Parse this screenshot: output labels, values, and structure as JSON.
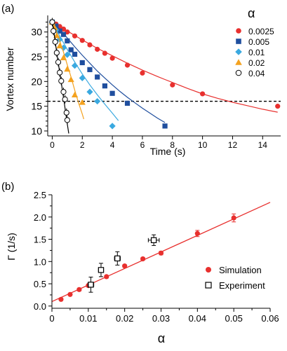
{
  "chart_data": [
    {
      "panel_label": "(a)",
      "type": "scatter",
      "xlabel": "Time (s)",
      "ylabel": "Vortex number",
      "xlim": [
        -0.3,
        15.2
      ],
      "ylim": [
        9,
        32.5
      ],
      "xticks": [
        0,
        2,
        4,
        6,
        8,
        10,
        12,
        14
      ],
      "yticks": [
        10,
        15,
        20,
        25,
        30
      ],
      "xtick_labels": [
        "0",
        "2",
        "4",
        "6",
        "8",
        "10",
        "12",
        "14"
      ],
      "ytick_labels": [
        "10",
        "15",
        "20",
        "25",
        "30"
      ],
      "legend_title": "α",
      "legend_position": "top-right",
      "reference_line": {
        "y": 16,
        "style": "dashed"
      },
      "series": [
        {
          "name": "0.0025",
          "color": "#e8302e",
          "marker": "circle-filled",
          "points": [
            [
              0,
              32
            ],
            [
              0.25,
              31.6
            ],
            [
              0.5,
              31.1
            ],
            [
              0.75,
              30.6
            ],
            [
              1,
              30
            ],
            [
              1.5,
              29.2
            ],
            [
              2,
              28.3
            ],
            [
              2.5,
              27.4
            ],
            [
              3,
              26.5
            ],
            [
              3.5,
              25.7
            ],
            [
              4,
              24.7
            ],
            [
              5,
              23.3
            ],
            [
              6,
              21.7
            ],
            [
              8,
              19.3
            ],
            [
              10,
              17.5
            ],
            [
              15,
              15
            ]
          ],
          "curve": [
            [
              0,
              32
            ],
            [
              1,
              30.2
            ],
            [
              2,
              28.4
            ],
            [
              3,
              26.7
            ],
            [
              4,
              25.2
            ],
            [
              5,
              23.7
            ],
            [
              6,
              22.3
            ],
            [
              7,
              21
            ],
            [
              7.5,
              20.4
            ],
            [
              8,
              19.8
            ],
            [
              9,
              18.6
            ],
            [
              10,
              17.5
            ],
            [
              11,
              16.6
            ],
            [
              12,
              15.8
            ],
            [
              13,
              15.1
            ],
            [
              14,
              14.4
            ],
            [
              15,
              13.8
            ]
          ]
        },
        {
          "name": "0.005",
          "color": "#1f4e9e",
          "marker": "square-filled",
          "points": [
            [
              0,
              32
            ],
            [
              0.25,
              31.2
            ],
            [
              0.5,
              30.2
            ],
            [
              0.75,
              29.5
            ],
            [
              1,
              28.2
            ],
            [
              1.25,
              26.4
            ],
            [
              1.5,
              25.5
            ],
            [
              2,
              23.8
            ],
            [
              2.5,
              22.4
            ],
            [
              3,
              20.9
            ],
            [
              3.5,
              19.1
            ],
            [
              4,
              17.6
            ],
            [
              5,
              15.6
            ],
            [
              7.5,
              11
            ]
          ],
          "curve": [
            [
              0,
              32
            ],
            [
              0.5,
              30.6
            ],
            [
              1,
              28.8
            ],
            [
              1.5,
              27
            ],
            [
              2,
              25.3
            ],
            [
              2.5,
              23.7
            ],
            [
              3,
              22.1
            ],
            [
              3.5,
              20.7
            ],
            [
              4,
              19.3
            ],
            [
              4.5,
              18
            ],
            [
              5,
              16.8
            ],
            [
              5.5,
              15.7
            ],
            [
              6,
              14.6
            ],
            [
              6.5,
              13.6
            ],
            [
              7,
              12.6
            ],
            [
              7.5,
              11.7
            ]
          ]
        },
        {
          "name": "0.01",
          "color": "#3aa9e0",
          "marker": "diamond-filled",
          "points": [
            [
              0,
              32
            ],
            [
              0.25,
              30.4
            ],
            [
              0.5,
              28.5
            ],
            [
              0.75,
              26.8
            ],
            [
              1,
              25.4
            ],
            [
              1.5,
              23.2
            ],
            [
              2,
              20.7
            ],
            [
              2.5,
              17.9
            ],
            [
              3,
              16
            ],
            [
              4,
              11
            ]
          ],
          "curve": [
            [
              0,
              32
            ],
            [
              0.5,
              29.2
            ],
            [
              1,
              26.5
            ],
            [
              1.5,
              23.9
            ],
            [
              2,
              21.5
            ],
            [
              2.5,
              19.3
            ],
            [
              3,
              17.3
            ],
            [
              3.5,
              15.4
            ],
            [
              4,
              13.6
            ],
            [
              4.4,
              12.1
            ]
          ]
        },
        {
          "name": "0.02",
          "color": "#f4a21f",
          "marker": "triangle-filled",
          "points": [
            [
              0,
              32
            ],
            [
              0.15,
              30.9
            ],
            [
              0.3,
              29.3
            ],
            [
              0.5,
              27.2
            ],
            [
              0.75,
              24.8
            ],
            [
              1,
              22.5
            ],
            [
              1.25,
              20.4
            ],
            [
              1.5,
              17.3
            ],
            [
              2,
              15.8
            ]
          ],
          "curve": [
            [
              0,
              32
            ],
            [
              0.25,
              30.3
            ],
            [
              0.5,
              28.2
            ],
            [
              0.75,
              25.9
            ],
            [
              1,
              23.4
            ],
            [
              1.25,
              20.9
            ],
            [
              1.5,
              18.2
            ],
            [
              1.75,
              15.7
            ],
            [
              2,
              13.4
            ],
            [
              2.1,
              12.4
            ]
          ]
        },
        {
          "name": "0.04",
          "color": "#000000",
          "marker": "circle-open",
          "points": [
            [
              0,
              32
            ],
            [
              0.08,
              30.2
            ],
            [
              0.2,
              28
            ],
            [
              0.3,
              25.8
            ],
            [
              0.4,
              23.9
            ],
            [
              0.5,
              21.8
            ],
            [
              0.6,
              20.1
            ],
            [
              0.75,
              17.9
            ],
            [
              0.85,
              16.4
            ],
            [
              0.95,
              13.7
            ],
            [
              1,
              12.2
            ]
          ],
          "curve": [
            [
              0,
              32
            ],
            [
              0.1,
              30.2
            ],
            [
              0.2,
              28
            ],
            [
              0.3,
              25.8
            ],
            [
              0.4,
              23.8
            ],
            [
              0.5,
              21.8
            ],
            [
              0.6,
              19.8
            ],
            [
              0.7,
              17.8
            ],
            [
              0.8,
              15.7
            ],
            [
              0.9,
              13.6
            ],
            [
              1,
              11.5
            ],
            [
              1.1,
              9.5
            ]
          ]
        }
      ]
    },
    {
      "panel_label": "(b)",
      "type": "scatter",
      "xlabel": "α",
      "ylabel": "Γ (1/s)",
      "xlim": [
        -0.001,
        0.06
      ],
      "ylim": [
        -0.05,
        2.5
      ],
      "xticks": [
        0,
        0.01,
        0.02,
        0.03,
        0.04,
        0.05,
        0.06
      ],
      "yticks": [
        0,
        0.5,
        1.0,
        1.5,
        2.0,
        2.5
      ],
      "xtick_labels": [
        "0",
        "0.01",
        "0.02",
        "0.03",
        "0.04",
        "0.05",
        "0.06"
      ],
      "ytick_labels": [
        "0.0",
        "0.5",
        "1.0",
        "1.5",
        "2.0",
        "2.5"
      ],
      "legend_position": "bottom-right",
      "fit_line": {
        "color": "#e8302e",
        "x": [
          0,
          0.06
        ],
        "y": [
          0.1,
          2.33
        ]
      },
      "series": [
        {
          "name": "Simulation",
          "color": "#e8302e",
          "marker": "circle-filled",
          "points": [
            {
              "x": 0.0025,
              "y": 0.15,
              "yerr": 0.02
            },
            {
              "x": 0.005,
              "y": 0.26,
              "yerr": 0.02
            },
            {
              "x": 0.0075,
              "y": 0.37,
              "yerr": 0.03
            },
            {
              "x": 0.01,
              "y": 0.46,
              "yerr": 0.03
            },
            {
              "x": 0.015,
              "y": 0.66,
              "yerr": 0.03
            },
            {
              "x": 0.02,
              "y": 0.9,
              "yerr": 0.03
            },
            {
              "x": 0.025,
              "y": 1.06,
              "yerr": 0.03
            },
            {
              "x": 0.03,
              "y": 1.19,
              "yerr": 0.04
            },
            {
              "x": 0.04,
              "y": 1.63,
              "yerr": 0.07
            },
            {
              "x": 0.05,
              "y": 1.98,
              "yerr": 0.09
            }
          ]
        },
        {
          "name": "Experiment",
          "color": "#000000",
          "marker": "square-open",
          "points": [
            {
              "x": 0.0107,
              "y": 0.48,
              "xerr": 0.0008,
              "yerr": 0.17
            },
            {
              "x": 0.0135,
              "y": 0.81,
              "xerr": 0.0007,
              "yerr": 0.15
            },
            {
              "x": 0.018,
              "y": 1.07,
              "xerr": 0.0008,
              "yerr": 0.15
            },
            {
              "x": 0.028,
              "y": 1.48,
              "xerr": 0.0015,
              "yerr": 0.12
            }
          ]
        }
      ]
    }
  ]
}
